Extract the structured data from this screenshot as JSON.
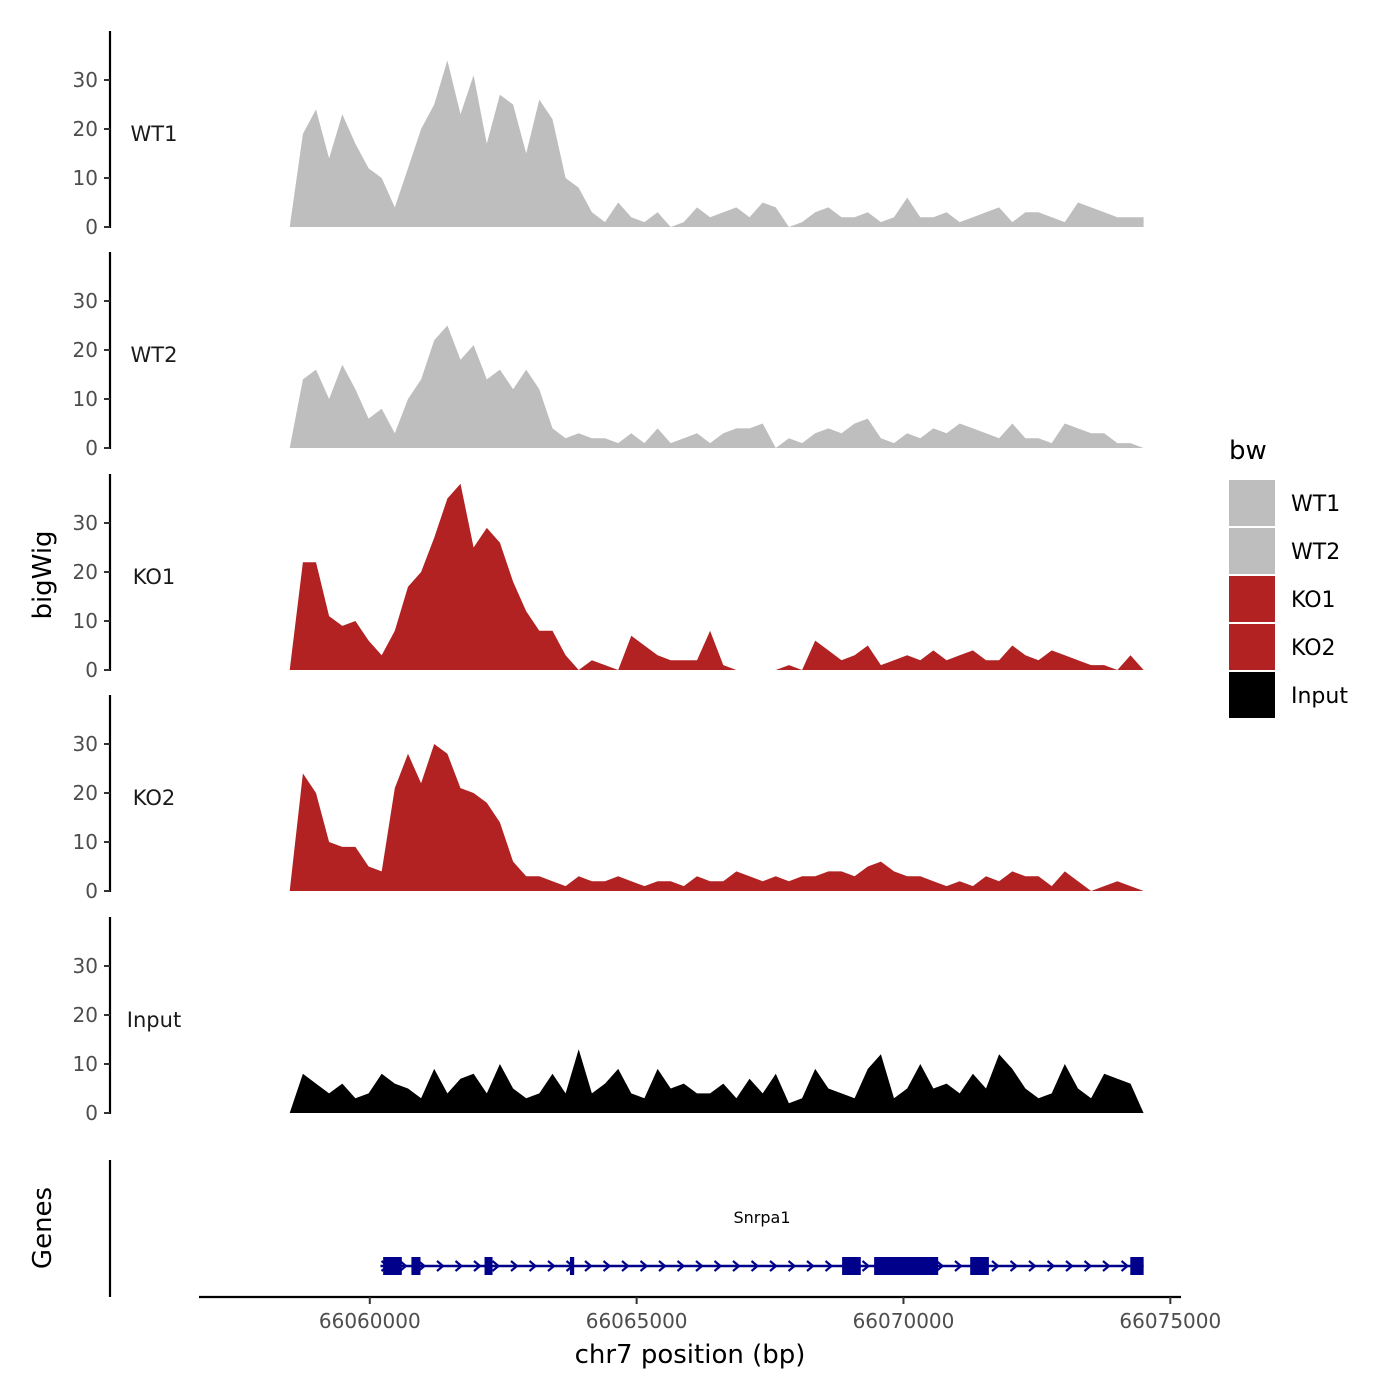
{
  "chart_data": {
    "type": "area",
    "title": "",
    "ylabel": "bigWig",
    "xlabel": "chr7 position (bp)",
    "xlim": [
      66056800,
      66075200
    ],
    "ylim": [
      0,
      40
    ],
    "y_ticks": [
      0,
      10,
      20,
      30
    ],
    "x_ticks": [
      66060000,
      66065000,
      66070000,
      66075000
    ],
    "x_tick_labels": [
      "66060000",
      "66065000",
      "66070000",
      "66075000"
    ],
    "y_tick_labels": [
      "0",
      "10",
      "20",
      "30"
    ],
    "track_range": [
      66058500,
      66074500
    ],
    "series": [
      {
        "name": "WT1",
        "color": "#bebebe",
        "values": [
          0,
          19,
          24,
          14,
          23,
          17,
          12,
          10,
          4,
          12,
          20,
          25,
          34,
          23,
          31,
          17,
          27,
          25,
          15,
          26,
          22,
          10,
          8,
          3,
          1,
          5,
          2,
          1,
          3,
          0,
          1,
          4,
          2,
          3,
          4,
          2,
          5,
          4,
          0,
          1,
          3,
          4,
          2,
          2,
          3,
          1,
          2,
          6,
          2,
          2,
          3,
          1,
          2,
          3,
          4,
          1,
          3,
          3,
          2,
          1,
          5,
          4,
          3,
          2,
          2,
          2
        ]
      },
      {
        "name": "WT2",
        "color": "#bebebe",
        "values": [
          0,
          14,
          16,
          10,
          17,
          12,
          6,
          8,
          3,
          10,
          14,
          22,
          25,
          18,
          21,
          14,
          16,
          12,
          16,
          12,
          4,
          2,
          3,
          2,
          2,
          1,
          3,
          1,
          4,
          1,
          2,
          3,
          1,
          3,
          4,
          4,
          5,
          0,
          2,
          1,
          3,
          4,
          3,
          5,
          6,
          2,
          1,
          3,
          2,
          4,
          3,
          5,
          4,
          3,
          2,
          5,
          2,
          2,
          1,
          5,
          4,
          3,
          3,
          1,
          1,
          0
        ]
      },
      {
        "name": "KO1",
        "color": "#b22222",
        "values": [
          0,
          22,
          22,
          11,
          9,
          10,
          6,
          3,
          8,
          17,
          20,
          27,
          35,
          38,
          25,
          29,
          26,
          18,
          12,
          8,
          8,
          3,
          0,
          2,
          1,
          0,
          7,
          5,
          3,
          2,
          2,
          2,
          8,
          1,
          0,
          0,
          0,
          0,
          1,
          0,
          6,
          4,
          2,
          3,
          5,
          1,
          2,
          3,
          2,
          4,
          2,
          3,
          4,
          2,
          2,
          5,
          3,
          2,
          4,
          3,
          2,
          1,
          1,
          0,
          3,
          0
        ]
      },
      {
        "name": "KO2",
        "color": "#b22222",
        "values": [
          0,
          24,
          20,
          10,
          9,
          9,
          5,
          4,
          21,
          28,
          22,
          30,
          28,
          21,
          20,
          18,
          14,
          6,
          3,
          3,
          2,
          1,
          3,
          2,
          2,
          3,
          2,
          1,
          2,
          2,
          1,
          3,
          2,
          2,
          4,
          3,
          2,
          3,
          2,
          3,
          3,
          4,
          4,
          3,
          5,
          6,
          4,
          3,
          3,
          2,
          1,
          2,
          1,
          3,
          2,
          4,
          3,
          3,
          1,
          4,
          2,
          0,
          1,
          2,
          1,
          0
        ]
      },
      {
        "name": "Input",
        "color": "#000000",
        "values": [
          0,
          8,
          6,
          4,
          6,
          3,
          4,
          8,
          6,
          5,
          3,
          9,
          4,
          7,
          8,
          4,
          10,
          5,
          3,
          4,
          8,
          4,
          13,
          4,
          6,
          9,
          4,
          3,
          9,
          5,
          6,
          4,
          4,
          6,
          3,
          7,
          4,
          8,
          2,
          3,
          9,
          5,
          4,
          3,
          9,
          12,
          3,
          5,
          10,
          5,
          6,
          4,
          8,
          5,
          12,
          9,
          5,
          3,
          4,
          10,
          5,
          3,
          8,
          7,
          6,
          0
        ]
      }
    ],
    "legend": {
      "title": "bw",
      "position": "right",
      "entries": [
        {
          "label": "WT1",
          "color": "#bebebe"
        },
        {
          "label": "WT2",
          "color": "#bebebe"
        },
        {
          "label": "KO1",
          "color": "#b22222"
        },
        {
          "label": "KO2",
          "color": "#b22222"
        },
        {
          "label": "Input",
          "color": "#000000"
        }
      ]
    },
    "genes": {
      "panel_label": "Genes",
      "color": "#00008b",
      "gene": {
        "name": "Snrpa1",
        "strand": "+",
        "start": 66060200,
        "end": 66074500,
        "exons": [
          [
            66060250,
            66060600
          ],
          [
            66060780,
            66060950
          ],
          [
            66062150,
            66062300
          ],
          [
            66063750,
            66063830
          ],
          [
            66068850,
            66069200
          ],
          [
            66069450,
            66070650
          ],
          [
            66071250,
            66071600
          ],
          [
            66074250,
            66074500
          ]
        ]
      }
    }
  }
}
